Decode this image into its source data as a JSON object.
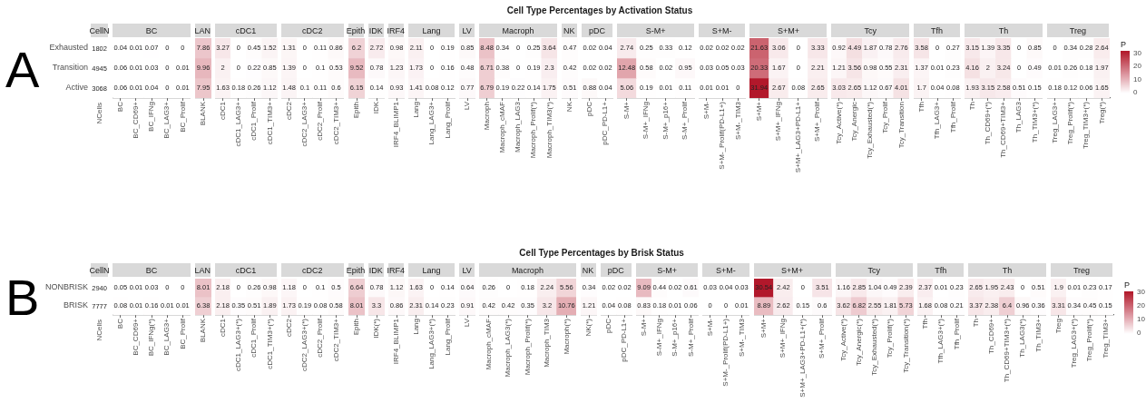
{
  "chart_data": [
    {
      "type": "other",
      "title": "Cell Type Percentages by Activation Status",
      "annotations": [
        "A",
        "CellN",
        "NCells",
        "1802",
        "4945",
        "3068"
      ]
    },
    {
      "type": "heatmap",
      "title": "BC",
      "categories": [
        "BC",
        "BC_CD69+",
        "BC_IFNg",
        "BC_LAG3+",
        "BC_Prolif"
      ],
      "y_categories": [
        "Exhausted",
        "Transition",
        "Active"
      ],
      "cells": [
        [
          0.04,
          0.01,
          0.07,
          0,
          0
        ],
        [
          0.06,
          0.01,
          0.03,
          0,
          0.01
        ],
        [
          0.06,
          0.01,
          0.04,
          0,
          0.01
        ]
      ],
      "data_labels": true
    },
    {
      "type": "heatmap",
      "title": "LAN",
      "categories": [
        "BLANK"
      ],
      "y_categories": [
        null,
        null,
        null
      ],
      "cells": [
        [
          7.86
        ],
        [
          9.96
        ],
        [
          7.95
        ]
      ],
      "data_labels": true,
      "tick_labels": "x"
    },
    {
      "type": "heatmap",
      "title": "cDC1",
      "categories": [
        "cDC1",
        "cDC1_LAG3+",
        "cDC1_Prolif",
        "cDC1_TIM3+"
      ],
      "y_categories": [
        null,
        null,
        null
      ],
      "cells": [
        [
          3.27,
          0,
          0.45,
          1.52
        ],
        [
          2,
          0,
          0.22,
          0.85
        ],
        [
          1.63,
          0.18,
          0.26,
          1.12
        ]
      ],
      "data_labels": true,
      "tick_labels": "x"
    },
    {
      "type": "heatmap",
      "title": "cDC2",
      "categories": [
        "cDC2",
        "cDC2_LAG3+",
        "cDC2_Prolif",
        "cDC2_TIM3+"
      ],
      "y_categories": [
        null,
        null,
        null
      ],
      "cells": [
        [
          1.31,
          0,
          0.11,
          0.86
        ],
        [
          1.39,
          0,
          0.1,
          0.53
        ],
        [
          1.48,
          0.1,
          0.11,
          0.6
        ]
      ],
      "data_labels": true,
      "tick_labels": "x"
    },
    {
      "type": "heatmap",
      "title": "Epith",
      "categories": [
        "Epith"
      ],
      "y_categories": [
        null,
        null,
        null
      ],
      "cells": [
        [
          6.2
        ],
        [
          9.52
        ],
        [
          6.15
        ]
      ],
      "data_labels": true,
      "tick_labels": "x"
    },
    {
      "type": "heatmap",
      "title": "IDK",
      "categories": [
        "IDK"
      ],
      "y_categories": [
        null,
        null,
        null
      ],
      "cells": [
        [
          2.72
        ],
        [
          0.78
        ],
        [
          0.14
        ]
      ],
      "data_labels": true,
      "tick_labels": "x"
    },
    {
      "type": "heatmap",
      "title": "IRF4",
      "categories": [
        "IRF4_BLIMP1"
      ],
      "y_categories": [
        null,
        null,
        null
      ],
      "cells": [
        [
          0.98
        ],
        [
          1.23
        ],
        [
          0.93
        ]
      ],
      "data_labels": true,
      "tick_labels": "x"
    },
    {
      "type": "heatmap",
      "title": "Lang",
      "categories": [
        "Lang",
        "Lang_LAG3+",
        "Lang_Prolif"
      ],
      "y_categories": [
        null,
        null,
        null
      ],
      "cells": [
        [
          2.11,
          0,
          0.19
        ],
        [
          1.73,
          0,
          0.16
        ],
        [
          1.41,
          0.08,
          0.12
        ]
      ],
      "data_labels": true,
      "tick_labels": "x"
    },
    {
      "type": "heatmap",
      "title": "LV",
      "categories": [
        "LV"
      ],
      "y_categories": [
        null,
        null,
        null
      ],
      "cells": [
        [
          0.85
        ],
        [
          0.48
        ],
        [
          0.77
        ]
      ],
      "data_labels": true,
      "tick_labels": "x"
    },
    {
      "type": "heatmap",
      "title": "Macroph",
      "categories": [
        "Macroph",
        "Macroph_cMAF",
        "Macroph_LAG3",
        "Macroph_Prolif(*)",
        "Macroph_TIM3(*)"
      ],
      "y_categories": [
        null,
        null,
        null
      ],
      "cells": [
        [
          8.48,
          0.34,
          0,
          0.25,
          3.64
        ],
        [
          6.71,
          0.38,
          0,
          0.19,
          2.3
        ],
        [
          6.79,
          0.19,
          0.22,
          0.14,
          1.75
        ]
      ],
      "data_labels": true,
      "tick_labels": "x"
    },
    {
      "type": "heatmap",
      "title": "NK",
      "categories": [
        "NK"
      ],
      "y_categories": [
        null,
        null,
        null
      ],
      "cells": [
        [
          0.47
        ],
        [
          0.42
        ],
        [
          0.51
        ]
      ],
      "data_labels": true,
      "tick_labels": "x"
    },
    {
      "type": "heatmap",
      "title": "pDC",
      "categories": [
        "pDC",
        "pDC_PD-L1+"
      ],
      "y_categories": [
        null,
        null,
        null
      ],
      "cells": [
        [
          0.02,
          0.04
        ],
        [
          0.02,
          0.02
        ],
        [
          0.88,
          0.04
        ]
      ],
      "data_labels": true,
      "tick_labels": "x"
    },
    {
      "type": "heatmap",
      "title": "S-M+",
      "categories": [
        "S-M+",
        "S-M+_IFNg",
        "S-M+_p16+",
        "S-M+_Prolif"
      ],
      "y_categories": [
        null,
        null,
        null
      ],
      "cells": [
        [
          2.74,
          0.25,
          0.33,
          0.12
        ],
        [
          12.48,
          0.58,
          0.02,
          0.95
        ],
        [
          5.06,
          0.19,
          0.01,
          0.11
        ]
      ],
      "data_labels": true,
      "tick_labels": "x"
    },
    {
      "type": "heatmap",
      "title": "S+M-",
      "categories": [
        "S+M-",
        "S+M-_Prolif(PD-L1+)",
        "S+M-_TIM3"
      ],
      "y_categories": [
        null,
        null,
        null
      ],
      "cells": [
        [
          0.02,
          0.02,
          0.02
        ],
        [
          0.03,
          0.05,
          0.03
        ],
        [
          0.01,
          0.01,
          0
        ]
      ],
      "data_labels": true,
      "tick_labels": "x"
    },
    {
      "type": "heatmap",
      "title": "S+M+",
      "categories": [
        "S+M+",
        "S+M+_IFNg",
        "S+M+_LAG3+PD-L1+",
        "S+M+_Prolif"
      ],
      "y_categories": [
        null,
        null,
        null
      ],
      "cells": [
        [
          21.63,
          3.06,
          0,
          3.33
        ],
        [
          20.33,
          1.67,
          0,
          2.21
        ],
        [
          31.94,
          2.67,
          0.08,
          2.65
        ]
      ],
      "data_labels": true,
      "tick_labels": "x"
    },
    {
      "type": "heatmap",
      "title": "Tcy",
      "categories": [
        "Tcy_Active(*)",
        "Tcy_Anergic",
        "Tcy_Exhausted(*)",
        "Tcy_Prolif",
        "Tcy_Transition"
      ],
      "y_categories": [
        null,
        null,
        null
      ],
      "cells": [
        [
          0.92,
          4.49,
          1.87,
          0.78,
          2.76
        ],
        [
          1.21,
          3.56,
          0.98,
          0.55,
          2.31
        ],
        [
          3.03,
          2.65,
          1.12,
          0.67,
          4.01
        ]
      ],
      "data_labels": true,
      "tick_labels": "x"
    },
    {
      "type": "heatmap",
      "title": "Tfh",
      "categories": [
        "Tfh",
        "Tfh_LAG3+",
        "Tfh_Prolif"
      ],
      "y_categories": [
        null,
        null,
        null
      ],
      "cells": [
        [
          3.58,
          0,
          0.27
        ],
        [
          1.37,
          0.01,
          0.23
        ],
        [
          1.7,
          0.04,
          0.08
        ]
      ],
      "data_labels": true,
      "tick_labels": "x"
    },
    {
      "type": "heatmap",
      "title": "Th",
      "categories": [
        "Th",
        "Th_CD69+(*)",
        "Th_CD69+TIM3+",
        "Th_LAG3",
        "Th_TIM3+(*)"
      ],
      "y_categories": [
        null,
        null,
        null
      ],
      "cells": [
        [
          3.15,
          1.39,
          3.35,
          0,
          0.85
        ],
        [
          4.16,
          2,
          3.24,
          0,
          0.49
        ],
        [
          1.93,
          3.15,
          2.58,
          0.51,
          0.15
        ]
      ],
      "data_labels": true,
      "tick_labels": "x"
    },
    {
      "type": "heatmap",
      "title": "Treg",
      "categories": [
        "Treg_LAG3+",
        "Treg_Prolif(*)",
        "Treg_TIM3+(*)",
        "Treg(*)"
      ],
      "y_categories": [
        null,
        null,
        null
      ],
      "cells": [
        [
          0,
          0.34,
          0.28,
          2.64
        ],
        [
          0.01,
          0.26,
          0.18,
          1.97
        ],
        [
          0.18,
          0.12,
          0.06,
          1.65
        ]
      ],
      "data_labels": true,
      "tick_labels": "x",
      "clabel": "P",
      "clim": [
        0,
        31.94
      ],
      "cticks": [
        0,
        10,
        20,
        30
      ]
    },
    {
      "type": "other",
      "title": "Cell Type Percentages by Brisk Status",
      "annotations": [
        "B",
        "CellN",
        "NCells",
        "2940",
        "7777"
      ]
    },
    {
      "type": "heatmap",
      "title": "BC",
      "categories": [
        "BC",
        "BC_CD69+",
        "BC_IFNg(*)",
        "BC_LAG3+",
        "BC_Prolif"
      ],
      "y_categories": [
        "NONBRISK",
        "BRISK"
      ],
      "cells": [
        [
          0.05,
          0.01,
          0.03,
          0,
          0
        ],
        [
          0.08,
          0.01,
          0.16,
          0.01,
          0.01
        ]
      ],
      "data_labels": true
    },
    {
      "type": "heatmap",
      "title": "LAN",
      "categories": [
        "BLANK"
      ],
      "y_categories": [
        null,
        null
      ],
      "cells": [
        [
          8.01
        ],
        [
          6.38
        ]
      ],
      "data_labels": true,
      "tick_labels": "x"
    },
    {
      "type": "heatmap",
      "title": "cDC1",
      "categories": [
        "cDC1",
        "cDC1_LAG3+(*)",
        "cDC1_Prolif",
        "cDC1_TIM3+(*)"
      ],
      "y_categories": [
        null,
        null
      ],
      "cells": [
        [
          2.18,
          0,
          0.26,
          0.98
        ],
        [
          2.18,
          0.35,
          0.51,
          1.89
        ]
      ],
      "data_labels": true,
      "tick_labels": "x"
    },
    {
      "type": "heatmap",
      "title": "cDC2",
      "categories": [
        "cDC2",
        "cDC2_LAG3+(*)",
        "cDC2_Prolif",
        "cDC2_TIM3+"
      ],
      "y_categories": [
        null,
        null
      ],
      "cells": [
        [
          1.18,
          0,
          0.1,
          0.5
        ],
        [
          1.73,
          0.19,
          0.08,
          0.58
        ]
      ],
      "data_labels": true,
      "tick_labels": "x"
    },
    {
      "type": "heatmap",
      "title": "Epith",
      "categories": [
        "Epith"
      ],
      "y_categories": [
        null,
        null
      ],
      "cells": [
        [
          6.64
        ],
        [
          8.01
        ]
      ],
      "data_labels": true,
      "tick_labels": "x"
    },
    {
      "type": "heatmap",
      "title": "IDK",
      "categories": [
        "IDK(*)"
      ],
      "y_categories": [
        null,
        null
      ],
      "cells": [
        [
          0.78
        ],
        [
          3.3
        ]
      ],
      "data_labels": true,
      "tick_labels": "x"
    },
    {
      "type": "heatmap",
      "title": "IRF4",
      "categories": [
        "IRF4_BLIMP1"
      ],
      "y_categories": [
        null,
        null
      ],
      "cells": [
        [
          1.12
        ],
        [
          0.86
        ]
      ],
      "data_labels": true,
      "tick_labels": "x"
    },
    {
      "type": "heatmap",
      "title": "Lang",
      "categories": [
        "Lang",
        "Lang_LAG3+(*)",
        "Lang_Prolif"
      ],
      "y_categories": [
        null,
        null
      ],
      "cells": [
        [
          1.63,
          0,
          0.14
        ],
        [
          2.31,
          0.14,
          0.23
        ]
      ],
      "data_labels": true,
      "tick_labels": "x"
    },
    {
      "type": "heatmap",
      "title": "LV",
      "categories": [
        "LV"
      ],
      "y_categories": [
        null,
        null
      ],
      "cells": [
        [
          0.64
        ],
        [
          0.91
        ]
      ],
      "data_labels": true,
      "tick_labels": "x"
    },
    {
      "type": "heatmap",
      "title": "Macroph",
      "categories": [
        "Macroph_cMAF",
        "Macroph_LAG3(*)",
        "Macroph_Prolif(*)",
        "Macroph_TIM3",
        "Macroph(*)"
      ],
      "y_categories": [
        null,
        null
      ],
      "cells": [
        [
          0.26,
          0,
          0.18,
          2.24,
          5.56
        ],
        [
          0.42,
          0.42,
          0.35,
          3.2,
          10.76
        ]
      ],
      "data_labels": true,
      "tick_labels": "x"
    },
    {
      "type": "heatmap",
      "title": "NK",
      "categories": [
        "NK(*)"
      ],
      "y_categories": [
        null,
        null
      ],
      "cells": [
        [
          0.34
        ],
        [
          1.21
        ]
      ],
      "data_labels": true,
      "tick_labels": "x"
    },
    {
      "type": "heatmap",
      "title": "pDC",
      "categories": [
        "pDC",
        "pDC_PD-L1+"
      ],
      "y_categories": [
        null,
        null
      ],
      "cells": [
        [
          0.02,
          0.02
        ],
        [
          0.04,
          0.08
        ]
      ],
      "data_labels": true,
      "tick_labels": "x"
    },
    {
      "type": "heatmap",
      "title": "S-M+",
      "categories": [
        "S-M+",
        "S-M+_IFNg",
        "S-M+_p16+",
        "S-M+_Prolif"
      ],
      "y_categories": [
        null,
        null
      ],
      "cells": [
        [
          9.09,
          0.44,
          0.02,
          0.61
        ],
        [
          0.83,
          0.18,
          0.01,
          0.06
        ]
      ],
      "data_labels": true,
      "tick_labels": "x"
    },
    {
      "type": "heatmap",
      "title": "S+M-",
      "categories": [
        "S+M-",
        "S+M-_Prolif(PD-L1+)",
        "S+M-_TIM3"
      ],
      "y_categories": [
        null,
        null
      ],
      "cells": [
        [
          0.03,
          0.04,
          0.03
        ],
        [
          0,
          0,
          0.01
        ]
      ],
      "data_labels": true,
      "tick_labels": "x"
    },
    {
      "type": "heatmap",
      "title": "S+M+",
      "categories": [
        "S+M+",
        "S+M+_IFNg",
        "S+M+_LAG3+PD-L1+(*)",
        "S+M+_Prolif"
      ],
      "y_categories": [
        null,
        null
      ],
      "cells": [
        [
          30.54,
          2.42,
          0,
          3.51
        ],
        [
          8.89,
          2.62,
          0.15,
          0.6
        ]
      ],
      "data_labels": true,
      "tick_labels": "x"
    },
    {
      "type": "heatmap",
      "title": "Tcy",
      "categories": [
        "Tcy_Active(*)",
        "Tcy_Anergic(*)",
        "Tcy_Exhausted(*)",
        "Tcy_Prolif(*)",
        "Tcy_Transition(*)"
      ],
      "y_categories": [
        null,
        null
      ],
      "cells": [
        [
          1.16,
          2.85,
          1.04,
          0.49,
          2.39
        ],
        [
          3.62,
          6.82,
          2.55,
          1.81,
          5.73
        ]
      ],
      "data_labels": true,
      "tick_labels": "x"
    },
    {
      "type": "heatmap",
      "title": "Tfh",
      "categories": [
        "Tfh",
        "Tfh_LAG3+(*)",
        "Tfh_Prolif"
      ],
      "y_categories": [
        null,
        null
      ],
      "cells": [
        [
          2.37,
          0.01,
          0.23
        ],
        [
          1.68,
          0.08,
          0.21
        ]
      ],
      "data_labels": true,
      "tick_labels": "x"
    },
    {
      "type": "heatmap",
      "title": "Th",
      "categories": [
        "Th",
        "Th_CD69+",
        "Th_CD69+TIM3+(*)",
        "Th_LAG3(*)",
        "Th_TIM3+"
      ],
      "y_categories": [
        null,
        null
      ],
      "cells": [
        [
          2.65,
          1.95,
          2.43,
          0,
          0.51
        ],
        [
          3.37,
          2.38,
          6.4,
          0.96,
          0.36
        ]
      ],
      "data_labels": true,
      "tick_labels": "x"
    },
    {
      "type": "heatmap",
      "title": "Treg",
      "categories": [
        "Treg",
        "Treg_LAG3+(*)",
        "Treg_Prolif(*)",
        "Treg_TIM3+"
      ],
      "y_categories": [
        null,
        null
      ],
      "cells": [
        [
          1.9,
          0.01,
          0.23,
          0.17
        ],
        [
          3.31,
          0.34,
          0.45,
          0.15
        ]
      ],
      "data_labels": true,
      "tick_labels": "x",
      "clabel": "P",
      "clim": [
        0,
        30.54
      ],
      "cticks": [
        0,
        10,
        20,
        30
      ]
    }
  ]
}
